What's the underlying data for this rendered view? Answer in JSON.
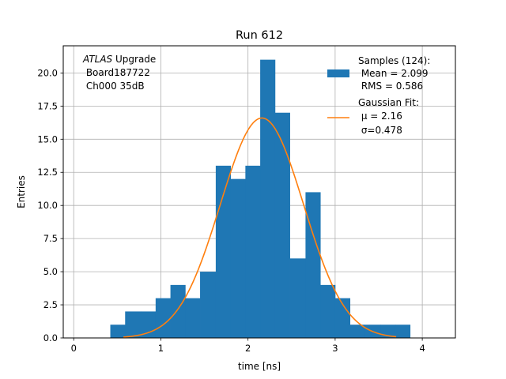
{
  "chart_data": {
    "type": "bar",
    "title": "Run 612",
    "xlabel": "time [ns]",
    "ylabel": "Entries",
    "xlim": [
      -0.12,
      4.38
    ],
    "ylim": [
      0,
      22.05
    ],
    "grid": true,
    "xticks": [
      0,
      1,
      2,
      3,
      4
    ],
    "xtick_labels": [
      "0",
      "1",
      "2",
      "3",
      "4"
    ],
    "yticks": [
      0,
      2.5,
      5,
      7.5,
      10,
      12.5,
      15,
      17.5,
      20
    ],
    "ytick_labels": [
      "0.0",
      "2.5",
      "5.0",
      "7.5",
      "10.0",
      "12.5",
      "15.0",
      "17.5",
      "20.0"
    ],
    "histogram": {
      "name": "Samples (124)",
      "color": "#1f77b4",
      "bin_edges": [
        0.42,
        0.59,
        0.77,
        0.94,
        1.11,
        1.28,
        1.45,
        1.63,
        1.8,
        1.97,
        2.14,
        2.31,
        2.48,
        2.66,
        2.83,
        3.0,
        3.17,
        3.34,
        3.52,
        3.69,
        3.86
      ],
      "values": [
        1,
        2,
        2,
        3,
        4,
        3,
        5,
        13,
        12,
        13,
        21,
        17,
        6,
        11,
        4,
        3,
        1,
        1,
        1,
        1
      ]
    },
    "fit": {
      "name": "Gaussian Fit",
      "color": "#ff7f0e",
      "mu": 2.16,
      "sigma": 0.478,
      "amplitude": 16.6,
      "x_range": [
        0.57,
        3.7
      ]
    },
    "legend": {
      "position": "top-right",
      "hist_lines": [
        "Samples (124):",
        " Mean = 2.099",
        " RMS = 0.586"
      ],
      "fit_lines": [
        "Gaussian Fit:",
        " μ = 2.16",
        " σ=0.478"
      ]
    },
    "annotation": {
      "position": "top-left",
      "atlas": "ATLAS",
      "upgrade": " Upgrade",
      "lines": [
        " Board187722",
        " Ch000 35dB"
      ]
    }
  }
}
